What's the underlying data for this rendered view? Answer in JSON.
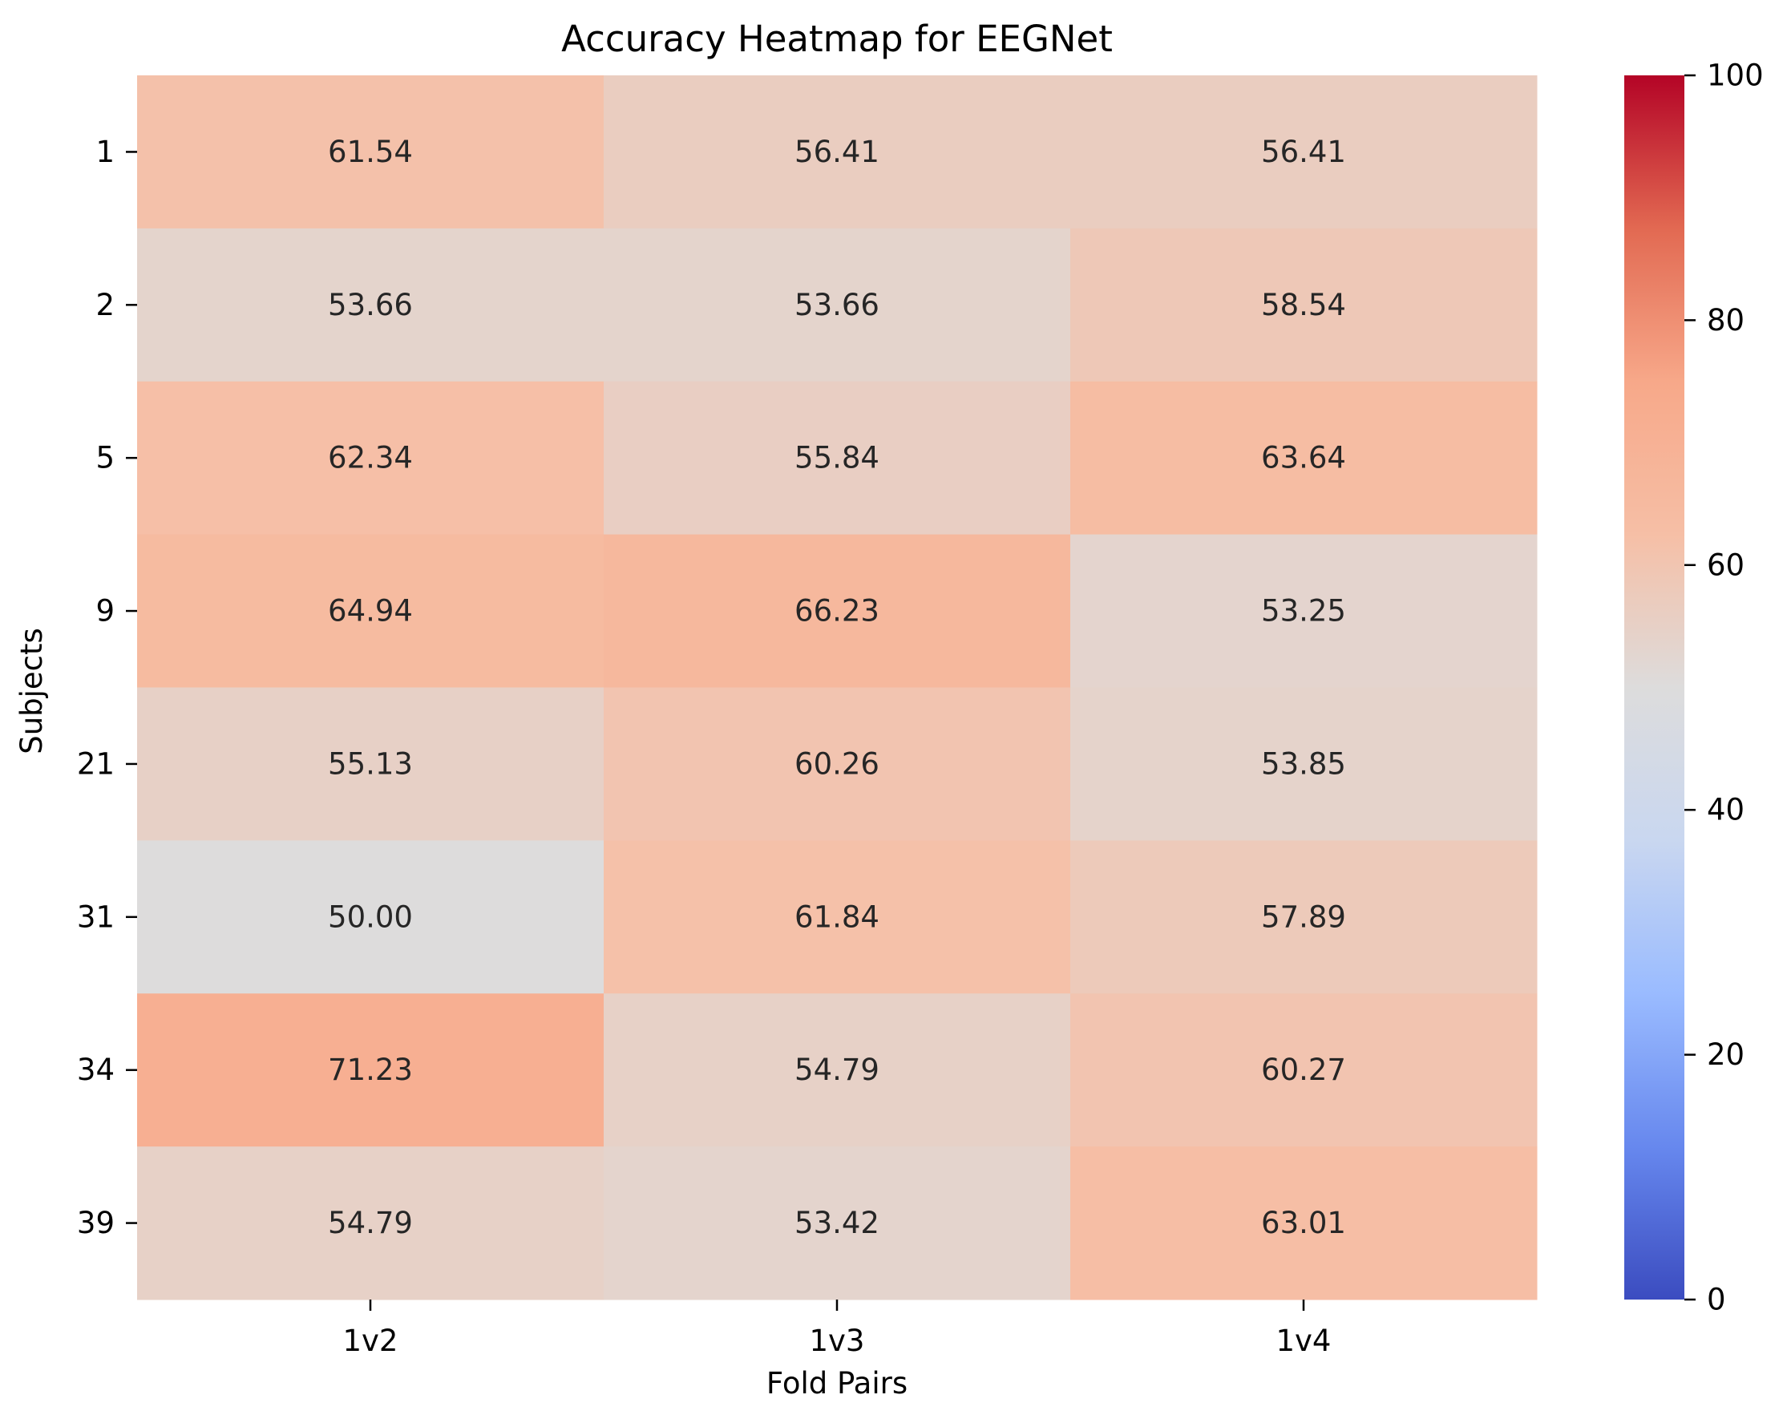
{
  "chart_data": {
    "type": "heatmap",
    "title": "Accuracy Heatmap for EEGNet",
    "xlabel": "Fold Pairs",
    "ylabel": "Subjects",
    "x_categories": [
      "1v2",
      "1v3",
      "1v4"
    ],
    "y_categories": [
      "1",
      "2",
      "5",
      "9",
      "21",
      "31",
      "34",
      "39"
    ],
    "values": [
      [
        61.54,
        56.41,
        56.41
      ],
      [
        53.66,
        53.66,
        58.54
      ],
      [
        62.34,
        55.84,
        63.64
      ],
      [
        64.94,
        66.23,
        53.25
      ],
      [
        55.13,
        60.26,
        53.85
      ],
      [
        50.0,
        61.84,
        57.89
      ],
      [
        71.23,
        54.79,
        60.27
      ],
      [
        54.79,
        53.42,
        63.01
      ]
    ],
    "value_labels": [
      [
        "61.54",
        "56.41",
        "56.41"
      ],
      [
        "53.66",
        "53.66",
        "58.54"
      ],
      [
        "62.34",
        "55.84",
        "63.64"
      ],
      [
        "64.94",
        "66.23",
        "53.25"
      ],
      [
        "55.13",
        "60.26",
        "53.85"
      ],
      [
        "50.00",
        "61.84",
        "57.89"
      ],
      [
        "71.23",
        "54.79",
        "60.27"
      ],
      [
        "54.79",
        "53.42",
        "63.01"
      ]
    ],
    "colorbar": {
      "colormap": "coolwarm",
      "range": [
        0,
        100
      ],
      "ticks": [
        0,
        20,
        40,
        60,
        80,
        100
      ],
      "tick_labels": [
        "0",
        "20",
        "40",
        "60",
        "80",
        "100"
      ],
      "colors": [
        "#3b4cc0",
        "#6788ee",
        "#9abbff",
        "#c9d7f0",
        "#dddcdc",
        "#f6bfa6",
        "#f7a889",
        "#e26952",
        "#b40426"
      ]
    },
    "grid": false,
    "legend": "none"
  }
}
